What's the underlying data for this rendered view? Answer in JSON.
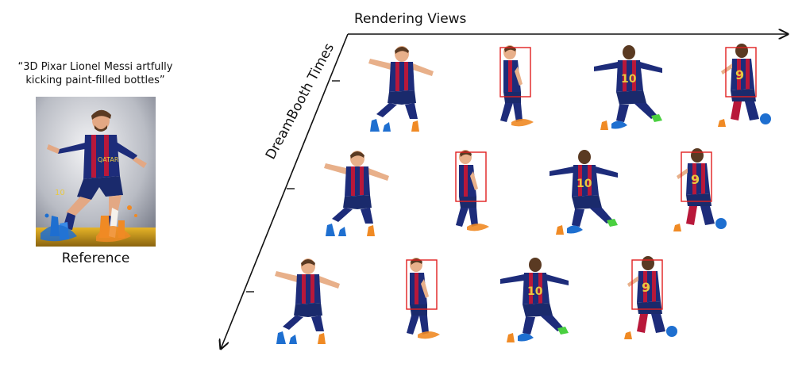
{
  "prompt": "“3D Pixar Lionel Messi artfully kicking paint-filled bottles”",
  "reference_label": "Reference",
  "axes": {
    "horizontal_label": "Rendering Views",
    "diagonal_label": "DreamBooth Times"
  },
  "colors": {
    "axis": "#111111",
    "highlight_box": "#e02020",
    "jersey_blue": "#1d2c7a",
    "jersey_red": "#b8183a",
    "shorts": "#1a2a6c",
    "skin": "#e8b08a",
    "hair": "#5a3a22",
    "paint_blue": "#1e6fd0",
    "paint_orange": "#f08a24"
  },
  "grid": [
    [
      {
        "view": "front-jump",
        "highlight": false
      },
      {
        "view": "side",
        "highlight": true
      },
      {
        "view": "back",
        "highlight": false
      },
      {
        "view": "back-side",
        "highlight": true
      }
    ],
    [
      {
        "view": "front-jump",
        "highlight": false
      },
      {
        "view": "side",
        "highlight": true
      },
      {
        "view": "back",
        "highlight": false
      },
      {
        "view": "back-side",
        "highlight": true
      }
    ],
    [
      {
        "view": "front-jump",
        "highlight": false
      },
      {
        "view": "side",
        "highlight": true
      },
      {
        "view": "back",
        "highlight": false
      },
      {
        "view": "back-side",
        "highlight": true
      }
    ]
  ]
}
